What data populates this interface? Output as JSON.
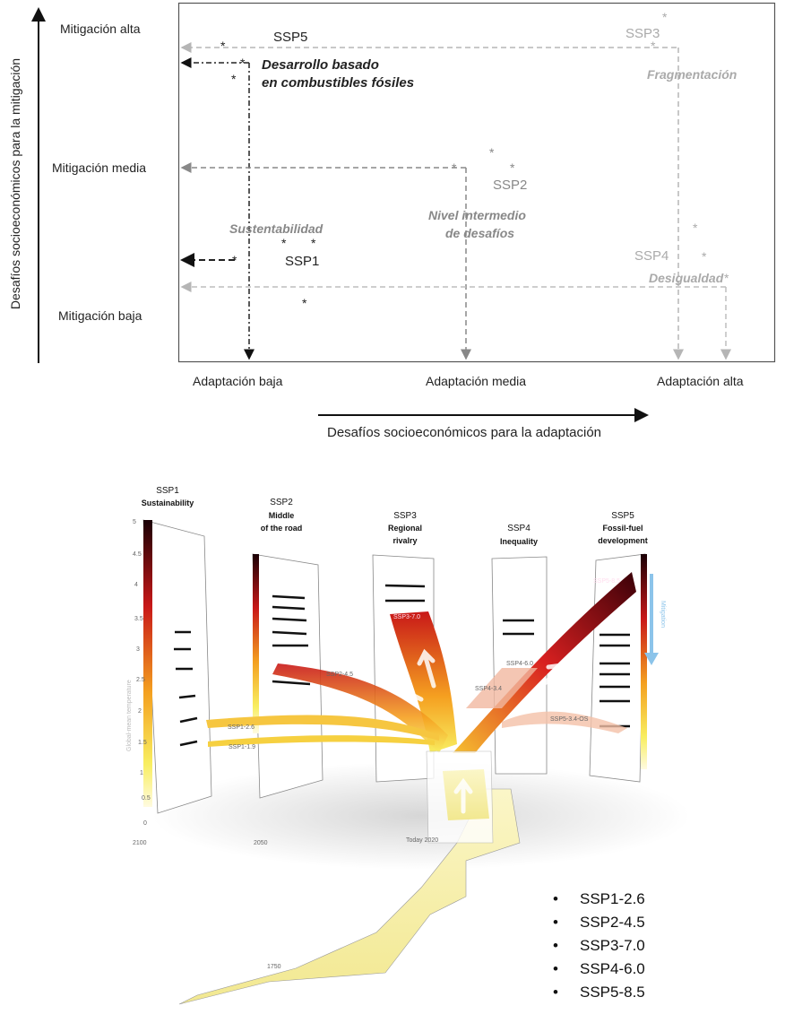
{
  "top_diagram": {
    "y_axis_label": "Desafíos socioeconómicos para la mitigación",
    "x_axis_label": "Desafíos socioeconómicos para la adaptación",
    "y_levels": [
      "Mitigación alta",
      "Mitigación media",
      "Mitigación baja"
    ],
    "x_levels": [
      "Adaptación baja",
      "Adaptación media",
      "Adaptación alta"
    ],
    "scenarios": [
      {
        "id": "SSP1",
        "name": "Sustentabilidad",
        "mitigation": "baja",
        "adaptation": "baja"
      },
      {
        "id": "SSP2",
        "name": "Nivel intermedio de desafíos",
        "name_lines": [
          "Nivel intermedio",
          "de desafíos"
        ],
        "mitigation": "media",
        "adaptation": "media"
      },
      {
        "id": "SSP3",
        "name": "Fragmentación",
        "mitigation": "alta",
        "adaptation": "alta"
      },
      {
        "id": "SSP4",
        "name": "Desigualdad",
        "mitigation": "baja",
        "adaptation": "alta"
      },
      {
        "id": "SSP5",
        "name": "Desarrollo basado en combustibles fósiles",
        "name_lines": [
          "Desarrollo basado",
          "en combustibles fósiles"
        ],
        "mitigation": "alta",
        "adaptation": "baja"
      }
    ],
    "marker": "*"
  },
  "bottom_figure": {
    "panels": [
      {
        "id": "SSP1",
        "name": "Sustainability"
      },
      {
        "id": "SSP2",
        "name_lines": [
          "Middle",
          "of the road"
        ]
      },
      {
        "id": "SSP3",
        "name_lines": [
          "Regional",
          "rivalry"
        ]
      },
      {
        "id": "SSP4",
        "name": "Inequality"
      },
      {
        "id": "SSP5",
        "name_lines": [
          "Fossil-fuel",
          "development"
        ]
      }
    ],
    "pathways": [
      "SSP1-1.9",
      "SSP1-2.6",
      "SSP2-4.5",
      "SSP3-7.0",
      "SSP4-3.4",
      "SSP4-6.0",
      "SSP5-3.4-OS",
      "SSP5-8.5"
    ],
    "y_axis_label": "Global-mean temperature",
    "y_ticks": [
      "5",
      "4.5",
      "4",
      "3.5",
      "3",
      "2.5",
      "2",
      "1.5",
      "1",
      "0.5",
      "0"
    ],
    "years": [
      "2100",
      "2050",
      "Today 2020",
      "1750"
    ],
    "mitigation_label": "Mitigation",
    "colors": {
      "hot": "#3a0008",
      "warm": "#d8201c",
      "mild": "#f5a020",
      "cool": "#f8ee60",
      "mitigation_arrow": "#8cc4ea"
    }
  },
  "legend": [
    "SSP1-2.6",
    "SSP2-4.5",
    "SSP3-7.0",
    "SSP4-6.0",
    "SSP5-8.5"
  ]
}
